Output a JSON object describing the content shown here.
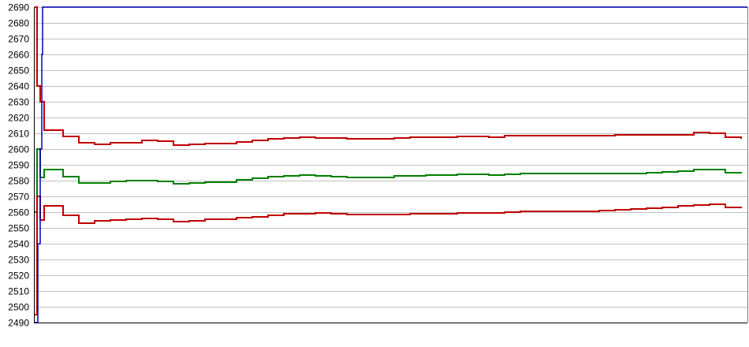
{
  "chart_data": {
    "type": "line",
    "title": "",
    "xlabel": "",
    "ylabel": "",
    "ylim": [
      2490,
      2690
    ],
    "xlim": [
      0,
      905
    ],
    "yticks": [
      2490,
      2500,
      2510,
      2520,
      2530,
      2540,
      2550,
      2560,
      2570,
      2580,
      2590,
      2600,
      2610,
      2620,
      2630,
      2640,
      2650,
      2660,
      2670,
      2680,
      2690
    ],
    "grid": true,
    "legend": "none",
    "series": [
      {
        "color": "#c00000",
        "x": [
          1,
          4,
          8,
          13,
          37,
          57,
          77,
          97,
          117,
          137,
          157,
          177,
          197,
          217,
          237,
          257,
          277,
          297,
          317,
          337,
          357,
          377,
          397,
          417,
          437,
          457,
          477,
          497,
          517,
          537,
          557,
          577,
          597,
          617,
          637,
          657,
          677,
          697,
          717,
          737,
          757,
          777,
          797,
          817,
          837,
          857,
          877,
          897
        ],
        "y": [
          2690,
          2640,
          2630,
          2612,
          2608,
          2604,
          2603,
          2604,
          2604,
          2605.5,
          2605,
          2602.5,
          2603,
          2603.5,
          2603.5,
          2604.5,
          2605.5,
          2606.5,
          2607,
          2607.5,
          2607,
          2607,
          2606.5,
          2606.5,
          2606.5,
          2607,
          2607.5,
          2607.5,
          2607.5,
          2608,
          2608,
          2607.5,
          2608.5,
          2608.5,
          2608.5,
          2608.5,
          2608.5,
          2608.5,
          2608.5,
          2609,
          2609,
          2609,
          2609,
          2609,
          2610.5,
          2610,
          2607.5,
          2606.5
        ]
      },
      {
        "color": "#008000",
        "x": [
          1,
          4,
          8,
          13,
          37,
          57,
          77,
          97,
          117,
          137,
          157,
          177,
          197,
          217,
          237,
          257,
          277,
          297,
          317,
          337,
          357,
          377,
          397,
          417,
          437,
          457,
          477,
          497,
          517,
          537,
          557,
          577,
          597,
          617,
          637,
          657,
          677,
          697,
          717,
          737,
          757,
          777,
          797,
          817,
          837,
          857,
          877,
          897
        ],
        "y": [
          2560,
          2600,
          2582,
          2587,
          2582.5,
          2578.5,
          2578.5,
          2579.5,
          2580,
          2580,
          2579.5,
          2578,
          2578.5,
          2579,
          2579,
          2580.5,
          2581.5,
          2582.5,
          2583,
          2583.5,
          2583,
          2582.5,
          2582,
          2582,
          2582,
          2583,
          2583,
          2583.5,
          2583.5,
          2584,
          2584,
          2583.5,
          2584,
          2584.5,
          2584.5,
          2584.5,
          2584.5,
          2584.5,
          2584.5,
          2584.5,
          2584.5,
          2585,
          2585.5,
          2586,
          2587,
          2587,
          2585,
          2584.5
        ]
      },
      {
        "color": "#c00000",
        "x": [
          1,
          4,
          8,
          13,
          37,
          57,
          77,
          97,
          117,
          137,
          157,
          177,
          197,
          217,
          237,
          257,
          277,
          297,
          317,
          337,
          357,
          377,
          397,
          417,
          437,
          457,
          477,
          497,
          517,
          537,
          557,
          577,
          597,
          617,
          637,
          657,
          677,
          697,
          717,
          737,
          757,
          777,
          797,
          817,
          837,
          857,
          877,
          897
        ],
        "y": [
          2495,
          2570,
          2555,
          2564,
          2558,
          2553,
          2554.5,
          2555,
          2555.5,
          2556,
          2555.5,
          2554,
          2554.5,
          2555.5,
          2555.5,
          2556.5,
          2557,
          2558,
          2559,
          2559,
          2559.5,
          2559,
          2558.5,
          2558.5,
          2558.5,
          2558.5,
          2559,
          2559,
          2559,
          2559.5,
          2559.5,
          2559.5,
          2560,
          2560.5,
          2560.5,
          2560.5,
          2560.5,
          2560.5,
          2561,
          2561.5,
          2562,
          2562.5,
          2563,
          2564,
          2564.5,
          2565,
          2563,
          2562.5
        ]
      },
      {
        "color": "#0000c0",
        "x": [
          0,
          5,
          8,
          10,
          11,
          905
        ],
        "y": [
          2490,
          2540,
          2600,
          2660,
          2690,
          2690
        ]
      }
    ]
  }
}
